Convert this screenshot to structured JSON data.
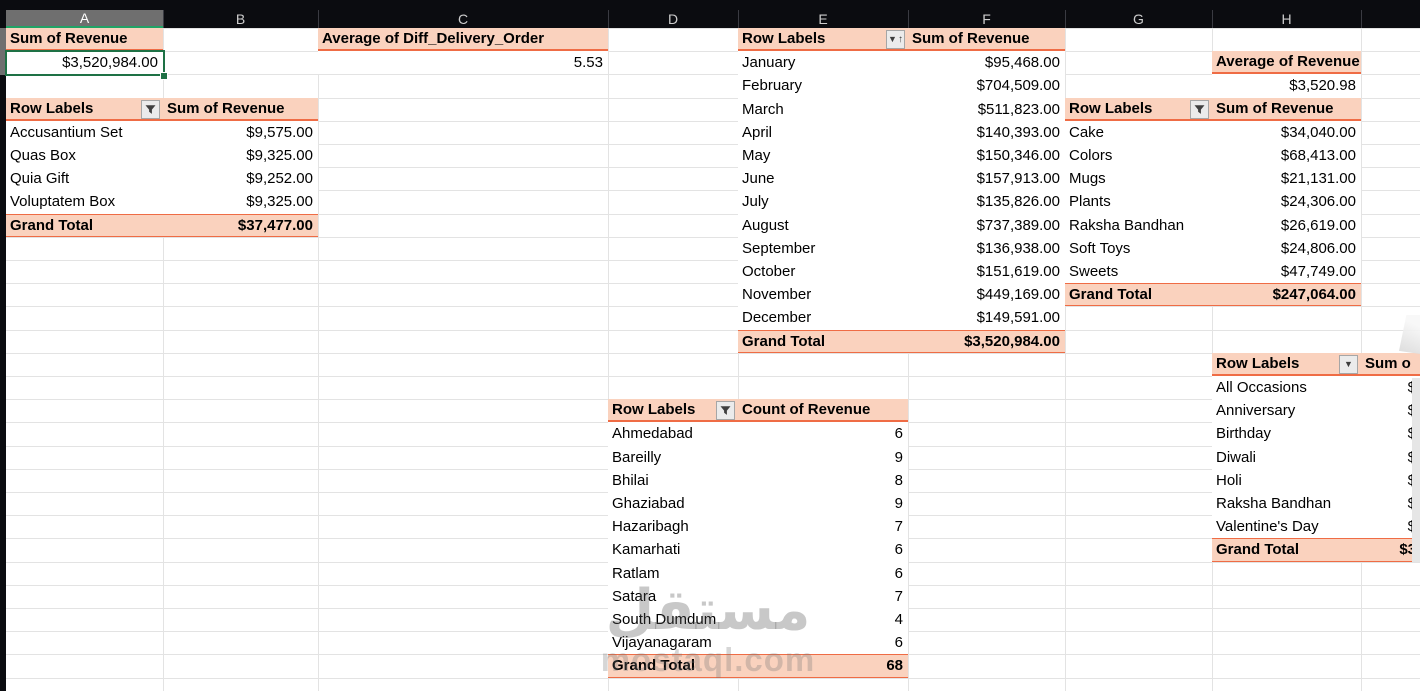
{
  "columns": [
    "A",
    "B",
    "C",
    "D",
    "E",
    "F",
    "G",
    "H"
  ],
  "selected_column": "A",
  "selected_cell": "A2",
  "colors": {
    "header_fill": "#FAD2BE",
    "accent_line": "#EF6C45",
    "selection_green": "#1E7145",
    "column_selected_green": "#21A366",
    "gridline": "#E3E3E3",
    "header_bar": "#0B0C10"
  },
  "cards": [
    {
      "id": "sum-of-revenue",
      "title": "Sum of Revenue",
      "value": "$3,520,984.00",
      "selected": true
    },
    {
      "id": "avg-diff-delivery-order",
      "title": "Average of Diff_Delivery_Order",
      "value": "5.53"
    },
    {
      "id": "average-of-revenue",
      "title": "Average of Revenue",
      "value": "$3,520.98"
    }
  ],
  "pivots": {
    "products": {
      "columns": [
        "Row Labels",
        "Sum of Revenue"
      ],
      "button": "filter-icon",
      "rows": [
        [
          "Accusantium Set",
          "$9,575.00"
        ],
        [
          "Quas Box",
          "$9,325.00"
        ],
        [
          "Quia Gift",
          "$9,252.00"
        ],
        [
          "Voluptatem Box",
          "$9,325.00"
        ]
      ],
      "total": [
        "Grand Total",
        "$37,477.00"
      ]
    },
    "months": {
      "columns": [
        "Row Labels",
        "Sum of Revenue"
      ],
      "button": "sort-ascending-icon",
      "rows": [
        [
          "January",
          "$95,468.00"
        ],
        [
          "February",
          "$704,509.00"
        ],
        [
          "March",
          "$511,823.00"
        ],
        [
          "April",
          "$140,393.00"
        ],
        [
          "May",
          "$150,346.00"
        ],
        [
          "June",
          "$157,913.00"
        ],
        [
          "July",
          "$135,826.00"
        ],
        [
          "August",
          "$737,389.00"
        ],
        [
          "September",
          "$136,938.00"
        ],
        [
          "October",
          "$151,619.00"
        ],
        [
          "November",
          "$449,169.00"
        ],
        [
          "December",
          "$149,591.00"
        ]
      ],
      "total": [
        "Grand Total",
        "$3,520,984.00"
      ]
    },
    "categories": {
      "columns": [
        "Row Labels",
        "Sum of Revenue"
      ],
      "button": "filter-icon",
      "rows": [
        [
          "Cake",
          "$34,040.00"
        ],
        [
          "Colors",
          "$68,413.00"
        ],
        [
          "Mugs",
          "$21,131.00"
        ],
        [
          "Plants",
          "$24,306.00"
        ],
        [
          "Raksha Bandhan",
          "$26,619.00"
        ],
        [
          "Soft Toys",
          "$24,806.00"
        ],
        [
          "Sweets",
          "$47,749.00"
        ]
      ],
      "total": [
        "Grand Total",
        "$247,064.00"
      ]
    },
    "cities": {
      "columns": [
        "Row Labels",
        "Count of Revenue"
      ],
      "button": "filter-icon",
      "rows": [
        [
          "Ahmedabad",
          "6"
        ],
        [
          "Bareilly",
          "9"
        ],
        [
          "Bhilai",
          "8"
        ],
        [
          "Ghaziabad",
          "9"
        ],
        [
          "Hazaribagh",
          "7"
        ],
        [
          "Kamarhati",
          "6"
        ],
        [
          "Ratlam",
          "6"
        ],
        [
          "Satara",
          "7"
        ],
        [
          "South Dumdum",
          "4"
        ],
        [
          "Vijayanagaram",
          "6"
        ]
      ],
      "total": [
        "Grand Total",
        "68"
      ]
    },
    "occasions": {
      "columns": [
        "Row Labels",
        "Sum o"
      ],
      "button": "dropdown-icon",
      "rows": [
        [
          "All Occasions",
          "$"
        ],
        [
          "Anniversary",
          "$"
        ],
        [
          "Birthday",
          "$"
        ],
        [
          "Diwali",
          "$"
        ],
        [
          "Holi",
          "$"
        ],
        [
          "Raksha Bandhan",
          "$"
        ],
        [
          "Valentine's Day",
          "$"
        ]
      ],
      "total": [
        "Grand Total",
        "$3"
      ]
    }
  },
  "watermark": {
    "arabic": "مستقل",
    "latin": "mostaql.com"
  }
}
